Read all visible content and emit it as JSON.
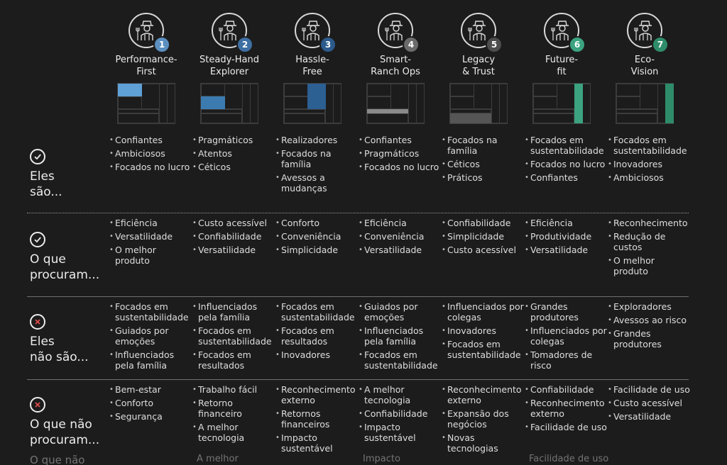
{
  "colors": {
    "background": "#1c1c1c",
    "blue_light": "#5fa0d6",
    "blue_mid": "#3b7bb0",
    "blue_dark": "#2c5f92",
    "gray": "#7a7a7a",
    "green": "#3ba37f"
  },
  "personas": [
    {
      "number": "1",
      "name": "Performance-\nFirst",
      "badge_color": "#5b8fc0",
      "icon": "farmer-icon",
      "highlight_color": "#5fa0d6"
    },
    {
      "number": "2",
      "name": "Steady-Hand\nExplorer",
      "badge_color": "#3d6fa3",
      "icon": "farmer-icon",
      "highlight_color": "#3b7bb0"
    },
    {
      "number": "3",
      "name": "Hassle-\nFree",
      "badge_color": "#2c5a8c",
      "icon": "farmer-icon",
      "highlight_color": "#2c5f92"
    },
    {
      "number": "4",
      "name": "Smart-\nRanch Ops",
      "badge_color": "#6b6b6b",
      "icon": "farmer-icon",
      "highlight_color": "#8a8a8a"
    },
    {
      "number": "5",
      "name": "Legacy\n& Trust",
      "badge_color": "#4d4d4d",
      "icon": "farmer-icon",
      "highlight_color": "#555555"
    },
    {
      "number": "6",
      "name": "Future-\nfit",
      "badge_color": "#3ba37f",
      "icon": "farmer-icon",
      "highlight_color": "#3ba37f"
    },
    {
      "number": "7",
      "name": "Eco-\nVision",
      "badge_color": "#2e8c6a",
      "icon": "farmer-icon",
      "highlight_color": "#2e8c6a"
    }
  ],
  "rows": [
    {
      "label_line1": "Eles",
      "label_line2": "são...",
      "icon": "check-icon",
      "cells": [
        [
          "Confiantes",
          "Ambiciosos",
          "Focados no lucro"
        ],
        [
          "Pragmáticos",
          "Atentos",
          "Céticos"
        ],
        [
          "Realizadores",
          "Focados na família",
          "Avessos a mudanças"
        ],
        [
          "Confiantes",
          "Pragmáticos",
          "Focados no lucro"
        ],
        [
          "Focados na família",
          "Céticos",
          "Práticos"
        ],
        [
          "Focados em sustentabilidade",
          "Focados no lucro",
          "Confiantes"
        ],
        [
          "Focados em sustentabilidade",
          "Inovadores",
          "Ambiciosos"
        ]
      ]
    },
    {
      "label_line1": "O que",
      "label_line2": "procuram...",
      "icon": "check-icon",
      "cells": [
        [
          "Eficiência",
          "Versatilidade",
          "O melhor produto"
        ],
        [
          "Custo acessível",
          "Confiabilidade",
          "Versatilidade"
        ],
        [
          "Conforto",
          "Conveniência",
          "Simplicidade"
        ],
        [
          "Eficiência",
          "Conveniência",
          "Versatilidade"
        ],
        [
          "Confiabilidade",
          "Simplicidade",
          "Custo acessível"
        ],
        [
          "Eficiência",
          "Produtividade",
          "Versatilidade"
        ],
        [
          "Reconhecimento",
          "Redução de custos",
          "O melhor produto"
        ]
      ]
    },
    {
      "label_line1": "Eles",
      "label_line2": "não são...",
      "icon": "x-icon",
      "cells": [
        [
          "Focados em sustentabilidade",
          "Guiados por emoções",
          "Influenciados pela família"
        ],
        [
          "Influenciados pela família",
          "Focados em sustentabilidade",
          "Focados em resultados"
        ],
        [
          "Focados em sustentabilidade",
          "Focados em resultados",
          "Inovadores"
        ],
        [
          "Guiados por emoções",
          "Influenciados pela família",
          "Focados em sustentabilidade"
        ],
        [
          "Influenciados por colegas",
          "Inovadores",
          "Focados em sustentabilidade"
        ],
        [
          "Grandes produtores",
          "Influenciados por colegas",
          "Tomadores de risco"
        ],
        [
          "Exploradores",
          "Avessos ao risco",
          "Grandes produtores"
        ]
      ]
    },
    {
      "label_line1": "O que não",
      "label_line2": "procuram...",
      "icon": "x-icon",
      "cells": [
        [
          "Bem-estar",
          "Conforto",
          "Segurança"
        ],
        [
          "Trabalho fácil",
          "Retorno financeiro",
          "A melhor tecnologia"
        ],
        [
          "Reconhecimento externo",
          "Retornos financeiros",
          "Impacto sustentável"
        ],
        [
          "A melhor tecnologia",
          "Confiabilidade",
          "Impacto sustentável"
        ],
        [
          "Reconhecimento externo",
          "Expansão dos negócios",
          "Novas tecnologias"
        ],
        [
          "Confiabilidade",
          "Reconhecimento externo",
          "Facilidade de uso"
        ],
        [
          "Facilidade de uso",
          "Custo acessível",
          "Versatilidade"
        ]
      ]
    }
  ],
  "cutoff": {
    "label": "O que não",
    "items": [
      "A melhor",
      "Impacto",
      "Facilidade de uso"
    ]
  }
}
